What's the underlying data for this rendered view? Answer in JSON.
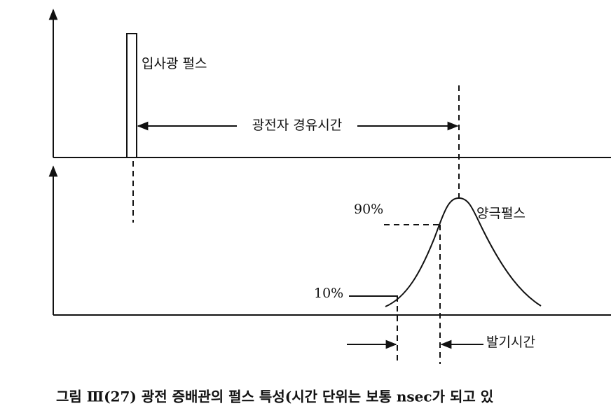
{
  "labels": {
    "incident_pulse": "입사광 펄스",
    "transit_time": "광전자 경유시간",
    "ninety": "90%",
    "anode_pulse": "양극펄스",
    "ten": "10%",
    "rise_time": "발기시간"
  },
  "caption": "그림 Ⅲ(27)  광전 증배관의 펄스 특성(시간 단위는 보통 nsec가 되고 있"
}
